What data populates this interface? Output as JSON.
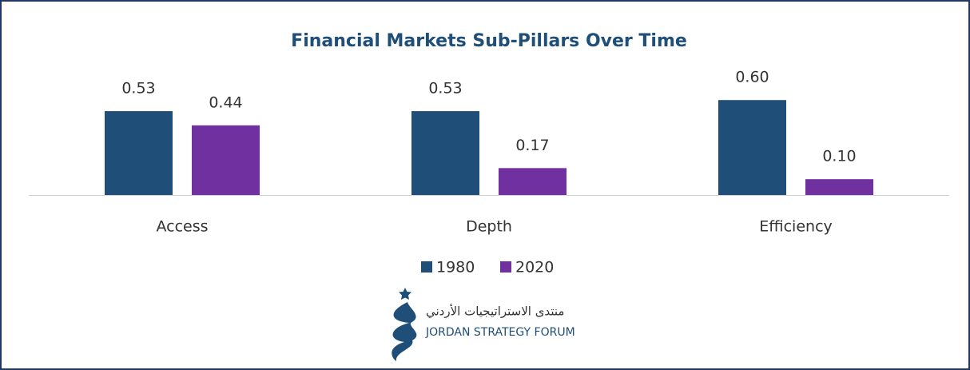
{
  "chart_data": {
    "type": "bar",
    "title": "Financial Markets Sub-Pillars Over Time",
    "categories": [
      "Access",
      "Depth",
      "Efficiency"
    ],
    "series": [
      {
        "name": "1980",
        "color": "#1f4e79",
        "values": [
          0.53,
          0.53,
          0.6
        ],
        "value_labels": [
          "0.53",
          "0.53",
          "0.60"
        ]
      },
      {
        "name": "2020",
        "color": "#7030a0",
        "values": [
          0.44,
          0.17,
          0.1
        ],
        "value_labels": [
          "0.44",
          "0.17",
          "0.10"
        ]
      }
    ],
    "legend": "bottom"
  },
  "logo": {
    "arabic": "منتدى الاستراتيجيات الأردني",
    "english": "JORDAN STRATEGY FORUM"
  }
}
